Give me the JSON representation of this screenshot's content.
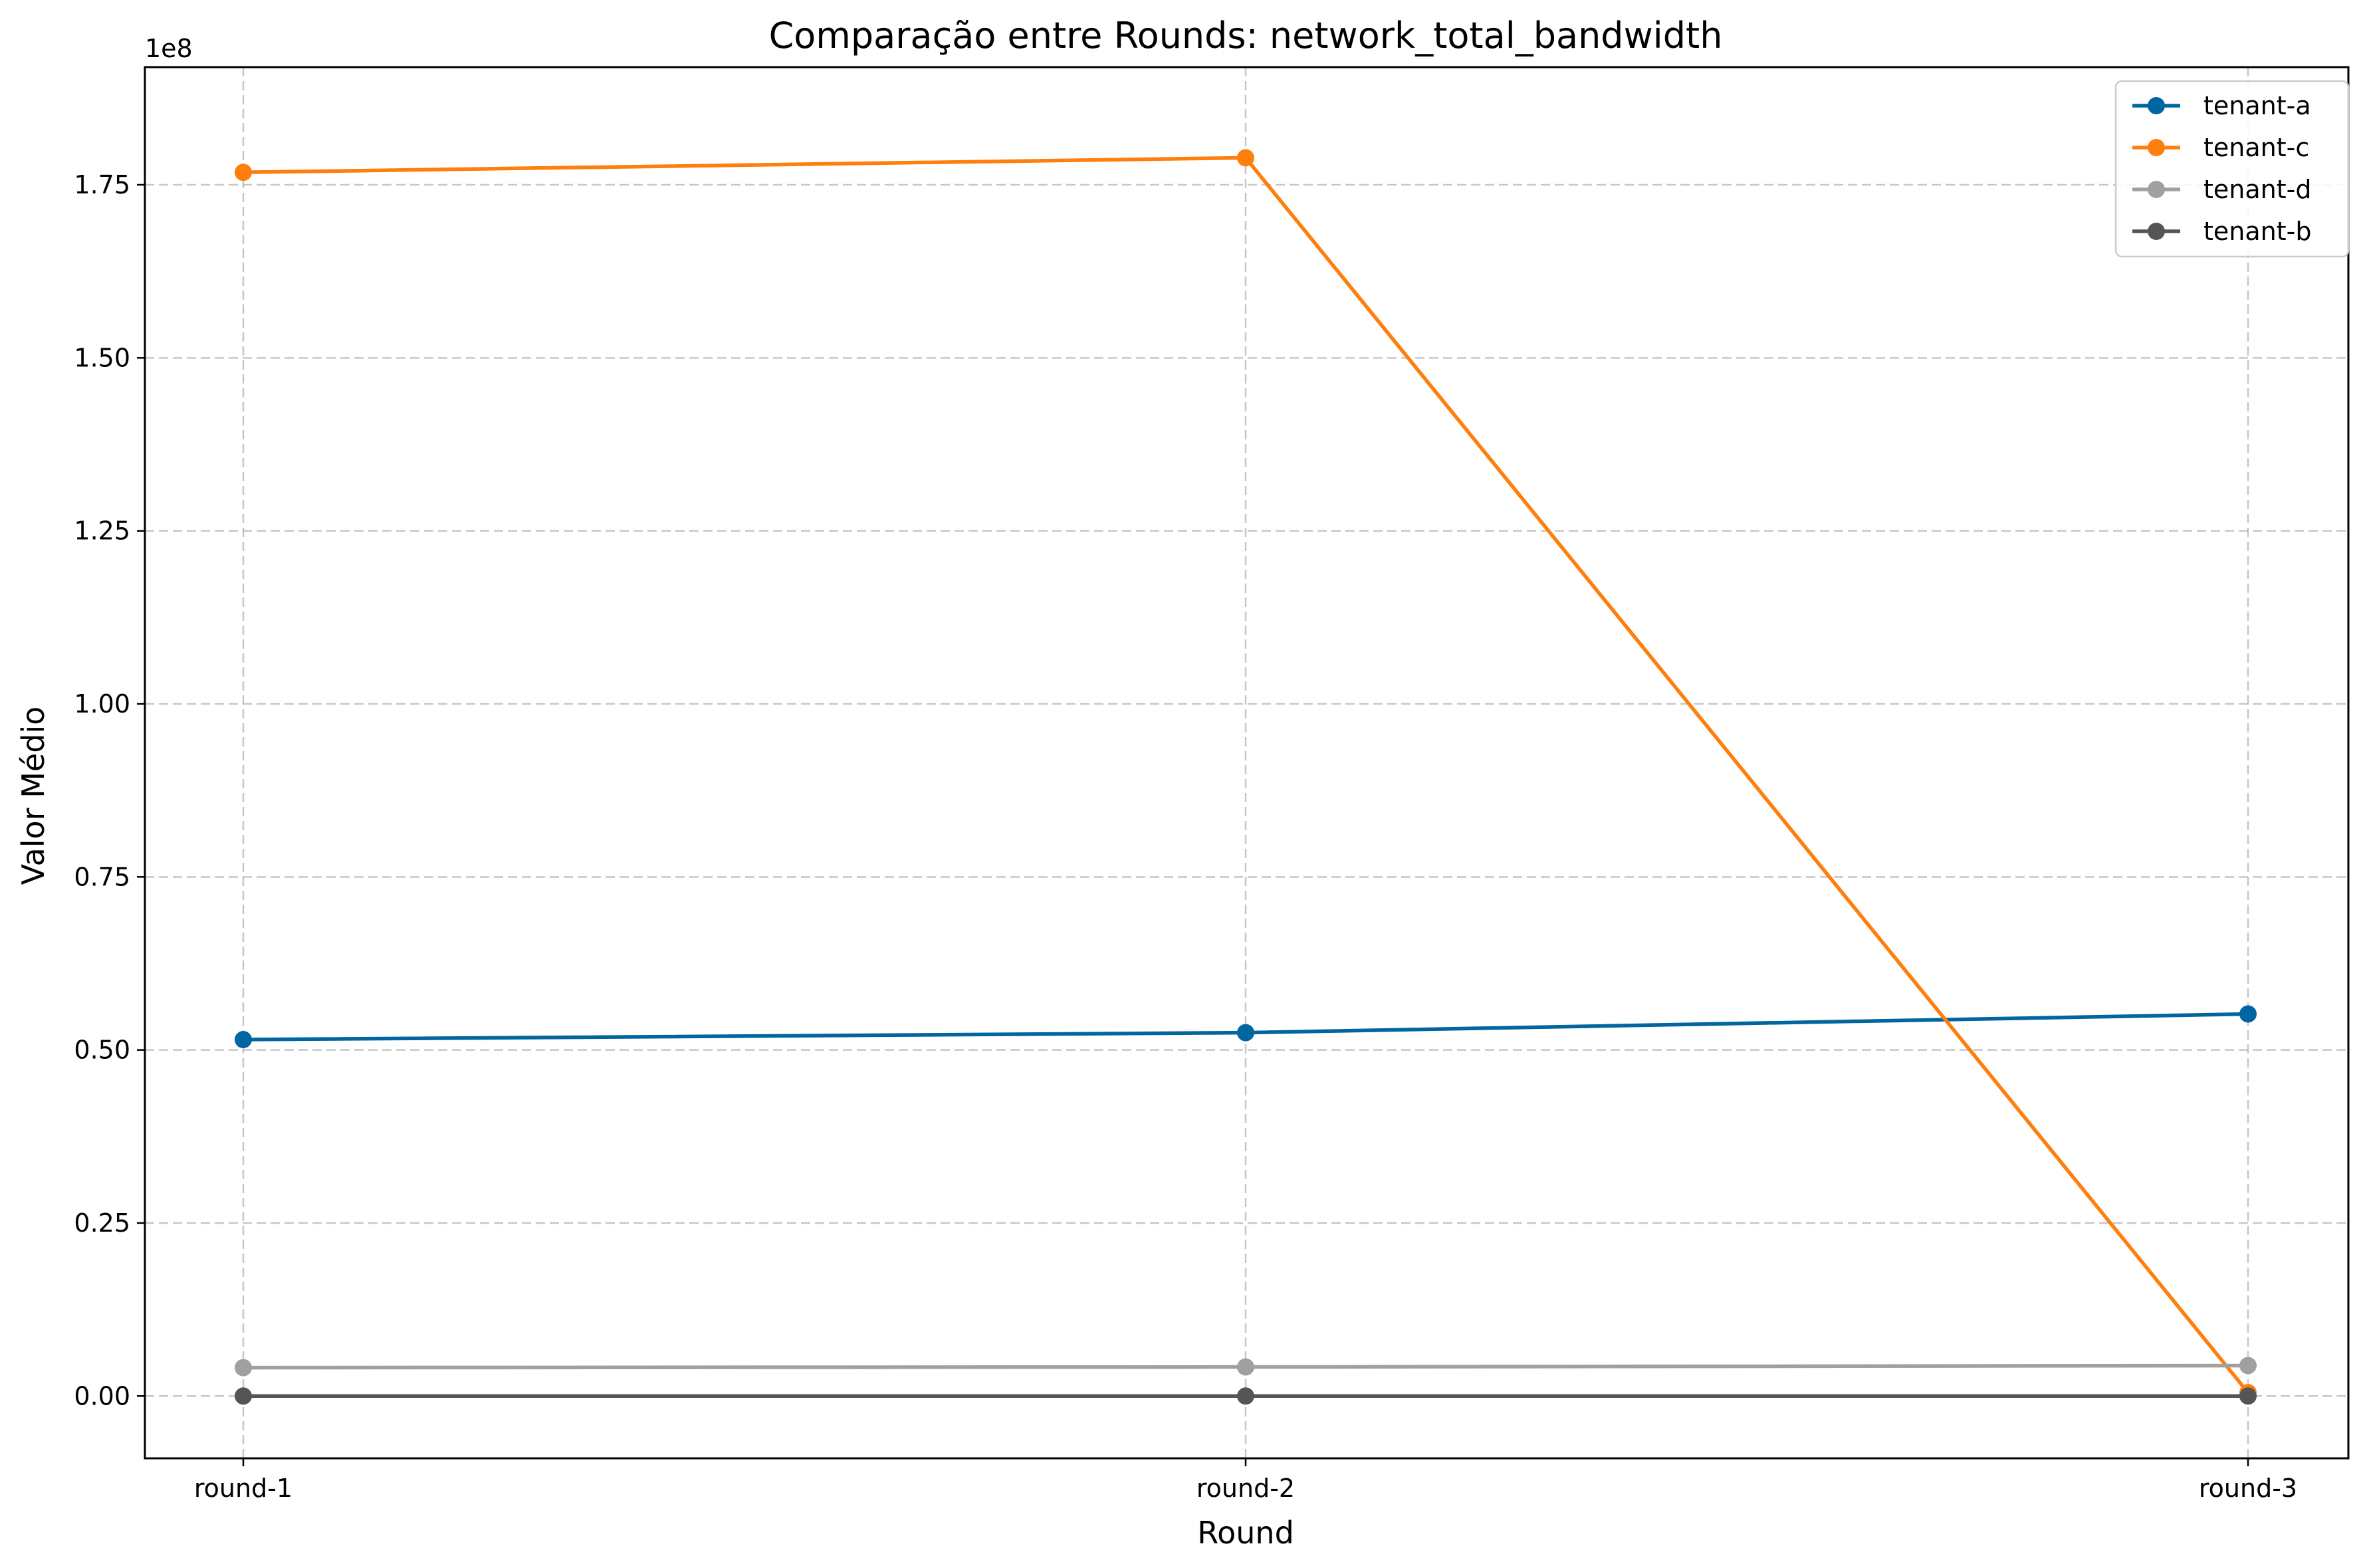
{
  "chart_data": {
    "type": "line",
    "title": "Comparação entre Rounds: network_total_bandwidth",
    "xlabel": "Round",
    "ylabel": "Valor Médio",
    "offset_text": "1e8",
    "categories": [
      "round-1",
      "round-2",
      "round-3"
    ],
    "ylim": [
      -9000000,
      192000000
    ],
    "yticks": [
      0,
      25000000,
      50000000,
      75000000,
      100000000,
      125000000,
      150000000,
      175000000
    ],
    "ytick_labels": [
      "0.00",
      "0.25",
      "0.50",
      "0.75",
      "1.00",
      "1.25",
      "1.50",
      "1.75"
    ],
    "grid": true,
    "legend_position": "top-right",
    "series": [
      {
        "name": "tenant-a",
        "color": "#0066a1",
        "values": [
          51500000,
          52500000,
          55200000
        ]
      },
      {
        "name": "tenant-c",
        "color": "#ff7f0e",
        "values": [
          176800000,
          178900000,
          500000
        ]
      },
      {
        "name": "tenant-d",
        "color": "#a0a0a0",
        "values": [
          4100000,
          4200000,
          4400000
        ]
      },
      {
        "name": "tenant-b",
        "color": "#555555",
        "values": [
          0,
          0,
          0
        ]
      }
    ]
  }
}
